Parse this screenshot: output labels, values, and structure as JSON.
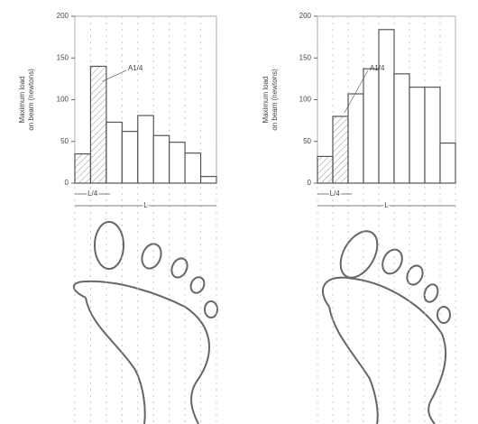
{
  "chart_data": [
    {
      "type": "bar",
      "ylabel": [
        "Maximum load",
        "on beam (newtons)"
      ],
      "categories": [
        null,
        null,
        null,
        null,
        null,
        null,
        null,
        null,
        null
      ],
      "values": [
        35,
        140,
        73,
        62,
        81,
        57,
        49,
        36,
        8
      ],
      "color": "#ffffff",
      "hatched_bars": 2,
      "ylim": [
        0,
        200
      ],
      "yticks": [
        0,
        50,
        100,
        150,
        200
      ],
      "annotation": "A1/4",
      "quarter_label": "L/4",
      "length_label": "L"
    },
    {
      "type": "bar",
      "ylabel": [
        "Maximum load",
        "on beam (newtons)"
      ],
      "categories": [
        null,
        null,
        null,
        null,
        null,
        null,
        null,
        null,
        null
      ],
      "values": [
        32,
        80,
        107,
        137,
        184,
        131,
        115,
        115,
        48
      ],
      "color": "#ffffff",
      "hatched_bars": 2,
      "ylim": [
        0,
        200
      ],
      "yticks": [
        0,
        50,
        100,
        150,
        200
      ],
      "annotation": "A1/4",
      "quarter_label": "L/4",
      "length_label": "L"
    }
  ]
}
